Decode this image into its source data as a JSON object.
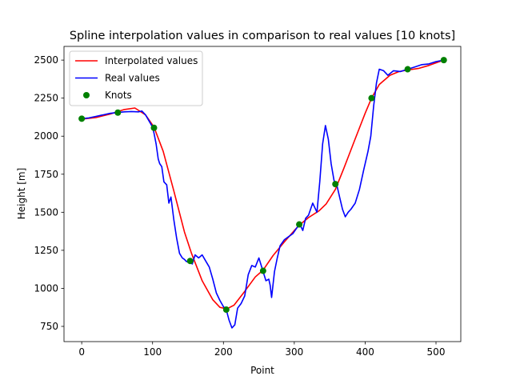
{
  "chart_data": {
    "type": "line",
    "title": "Spline interpolation values in comparison to real values [10 knots]",
    "xlabel": "Point",
    "ylabel": "Height [m]",
    "xlim": [
      -25,
      535
    ],
    "ylim": [
      650,
      2590
    ],
    "xticks": [
      0,
      100,
      200,
      300,
      400,
      500
    ],
    "yticks": [
      750,
      1000,
      1250,
      1500,
      1750,
      2000,
      2250,
      2500
    ],
    "grid": false,
    "legend_position": "top-left",
    "series": [
      {
        "name": "Interpolated values",
        "kind": "line",
        "color": "#ff0000",
        "x": [
          0,
          20,
          40,
          60,
          75,
          90,
          102,
          115,
          130,
          145,
          155,
          170,
          185,
          195,
          205,
          215,
          230,
          245,
          256,
          270,
          285,
          300,
          307,
          320,
          335,
          345,
          358,
          370,
          385,
          400,
          409,
          420,
          435,
          448,
          460,
          475,
          490,
          505,
          511
        ],
        "y": [
          2112,
          2122,
          2145,
          2175,
          2185,
          2140,
          2060,
          1900,
          1640,
          1370,
          1230,
          1050,
          925,
          875,
          865,
          890,
          980,
          1075,
          1120,
          1215,
          1300,
          1380,
          1415,
          1465,
          1510,
          1555,
          1650,
          1790,
          1970,
          2150,
          2250,
          2340,
          2400,
          2425,
          2435,
          2445,
          2465,
          2490,
          2500
        ]
      },
      {
        "name": "Real values",
        "kind": "line",
        "color": "#0000ff",
        "x": [
          0,
          10,
          20,
          30,
          40,
          50,
          60,
          70,
          80,
          85,
          90,
          95,
          100,
          102,
          105,
          108,
          110,
          113,
          116,
          120,
          123,
          126,
          130,
          134,
          138,
          142,
          145,
          148,
          152,
          156,
          160,
          165,
          170,
          175,
          180,
          185,
          190,
          195,
          200,
          204,
          208,
          212,
          216,
          220,
          225,
          230,
          235,
          240,
          245,
          250,
          256,
          260,
          264,
          266,
          268,
          272,
          276,
          280,
          286,
          292,
          298,
          304,
          308,
          312,
          316,
          320,
          326,
          332,
          336,
          340,
          344,
          348,
          352,
          356,
          360,
          364,
          368,
          372,
          376,
          380,
          386,
          392,
          398,
          404,
          408,
          412,
          416,
          420,
          426,
          432,
          440,
          450,
          460,
          470,
          480,
          490,
          500,
          511
        ],
        "y": [
          2115,
          2120,
          2130,
          2140,
          2150,
          2155,
          2160,
          2162,
          2160,
          2165,
          2140,
          2100,
          2060,
          2020,
          1950,
          1850,
          1820,
          1800,
          1700,
          1680,
          1560,
          1600,
          1450,
          1330,
          1230,
          1200,
          1190,
          1175,
          1185,
          1160,
          1220,
          1200,
          1220,
          1180,
          1140,
          1060,
          970,
          920,
          880,
          860,
          790,
          740,
          760,
          870,
          900,
          950,
          1090,
          1150,
          1140,
          1200,
          1110,
          1050,
          1060,
          1020,
          940,
          1110,
          1200,
          1280,
          1320,
          1340,
          1360,
          1400,
          1420,
          1380,
          1460,
          1480,
          1560,
          1500,
          1700,
          1950,
          2070,
          1980,
          1820,
          1710,
          1680,
          1600,
          1520,
          1470,
          1500,
          1520,
          1560,
          1650,
          1780,
          1900,
          2000,
          2200,
          2350,
          2440,
          2430,
          2400,
          2430,
          2425,
          2440,
          2455,
          2470,
          2475,
          2490,
          2500
        ]
      },
      {
        "name": "Knots",
        "kind": "scatter",
        "color": "#008000",
        "x": [
          0,
          51,
          102,
          153,
          204,
          256,
          307,
          358,
          409,
          460,
          511
        ],
        "y": [
          2115,
          2155,
          2055,
          1180,
          860,
          1115,
          1420,
          1685,
          2250,
          2440,
          2500
        ]
      }
    ]
  }
}
